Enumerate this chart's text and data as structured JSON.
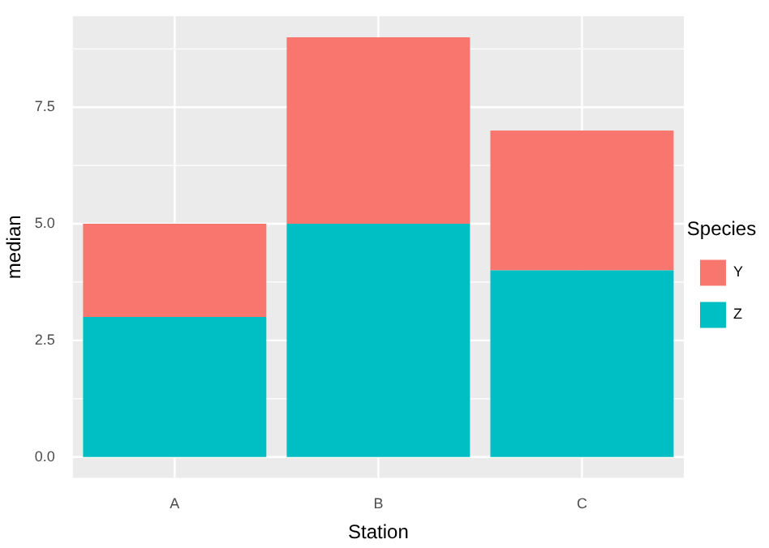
{
  "chart_data": {
    "type": "bar",
    "xlabel": "Station",
    "ylabel": "median",
    "legend_title": "Species",
    "categories": [
      "A",
      "B",
      "C"
    ],
    "stacked": true,
    "series": [
      {
        "name": "Z",
        "color": "#00bfc4",
        "values": [
          3,
          5,
          4
        ]
      },
      {
        "name": "Y",
        "color": "#f8766d",
        "values": [
          2,
          4,
          3
        ]
      }
    ],
    "ylim": [
      -0.45,
      9.45
    ],
    "yticks": [
      {
        "value": 0,
        "label": "0.0"
      },
      {
        "value": 2.5,
        "label": "2.5"
      },
      {
        "value": 5,
        "label": "5.0"
      },
      {
        "value": 7.5,
        "label": "7.5"
      }
    ],
    "grid": true,
    "legend": "right"
  }
}
